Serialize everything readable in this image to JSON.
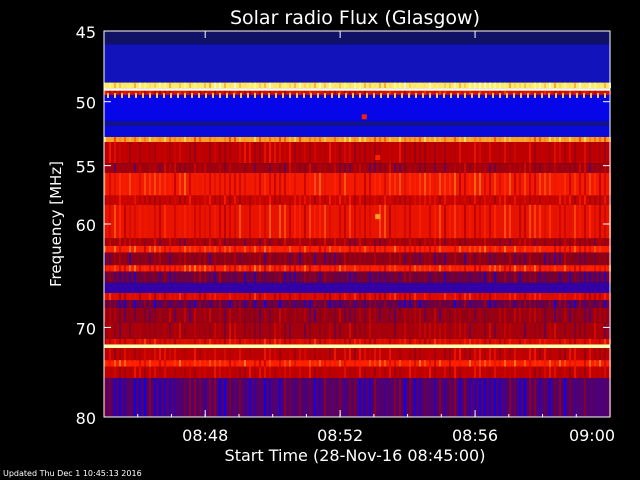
{
  "chart_data": {
    "type": "heatmap",
    "title": "Solar radio Flux (Glasgow)",
    "xlabel": "Start Time (28-Nov-16 08:45:00)",
    "ylabel": "Frequency [MHz]",
    "xlim": [
      "08:45",
      "09:00"
    ],
    "x_tick_labels": [
      "08:48",
      "08:52",
      "08:56",
      "09:00"
    ],
    "x_ticks_minutes_after_0845": [
      3,
      7,
      11,
      15
    ],
    "ylim": [
      45,
      80
    ],
    "y_scale": "log",
    "y_ticks": [
      45,
      50,
      55,
      60,
      70,
      80
    ],
    "colormap": [
      "#000000",
      "#1a1aa0",
      "#0000ff",
      "#800020",
      "#c00000",
      "#ff2000",
      "#ffa020",
      "#ffff80",
      "#ffffff"
    ],
    "bands": [
      {
        "from": 45,
        "to": 45.9,
        "level": 0.08
      },
      {
        "from": 45.9,
        "to": 48.6,
        "level": 0.16
      },
      {
        "from": 48.6,
        "to": 49.0,
        "level": 0.85
      },
      {
        "from": 49.0,
        "to": 49.2,
        "level": 0.98
      },
      {
        "from": 49.2,
        "to": 49.5,
        "level": 0.55
      },
      {
        "from": 49.5,
        "to": 51.5,
        "level": 0.22
      },
      {
        "from": 51.5,
        "to": 51.8,
        "level": 0.1
      },
      {
        "from": 51.8,
        "to": 52.7,
        "level": 0.2
      },
      {
        "from": 52.7,
        "to": 53.1,
        "level": 0.75
      },
      {
        "from": 53.1,
        "to": 54.8,
        "level": 0.5
      },
      {
        "from": 54.8,
        "to": 55.6,
        "level": 0.44
      },
      {
        "from": 55.6,
        "to": 57.5,
        "level": 0.6
      },
      {
        "from": 57.5,
        "to": 58.3,
        "level": 0.52
      },
      {
        "from": 58.3,
        "to": 61.3,
        "level": 0.58
      },
      {
        "from": 61.3,
        "to": 62.0,
        "level": 0.45
      },
      {
        "from": 62.0,
        "to": 62.6,
        "level": 0.62
      },
      {
        "from": 62.6,
        "to": 63.8,
        "level": 0.4
      },
      {
        "from": 63.8,
        "to": 64.4,
        "level": 0.62
      },
      {
        "from": 64.4,
        "to": 65.5,
        "level": 0.36
      },
      {
        "from": 65.5,
        "to": 66.5,
        "level": 0.3
      },
      {
        "from": 66.5,
        "to": 67.2,
        "level": 0.55
      },
      {
        "from": 67.2,
        "to": 68.0,
        "level": 0.35
      },
      {
        "from": 68.0,
        "to": 69.5,
        "level": 0.42
      },
      {
        "from": 69.5,
        "to": 71.2,
        "level": 0.45
      },
      {
        "from": 71.2,
        "to": 71.8,
        "level": 0.55
      },
      {
        "from": 71.8,
        "to": 72.2,
        "level": 0.92
      },
      {
        "from": 72.2,
        "to": 73.5,
        "level": 0.5
      },
      {
        "from": 73.5,
        "to": 74.2,
        "level": 0.62
      },
      {
        "from": 74.2,
        "to": 75.5,
        "level": 0.5
      },
      {
        "from": 75.5,
        "to": 80,
        "level": 0.33
      }
    ],
    "spots": [
      {
        "minutes": 7.7,
        "freq": 51.1,
        "level": 0.62
      },
      {
        "minutes": 8.1,
        "freq": 59.3,
        "level": 0.75
      },
      {
        "minutes": 8.1,
        "freq": 54.3,
        "level": 0.62
      }
    ]
  },
  "footer": {
    "updated": "Updated Thu Dec  1 10:45:13 2016"
  }
}
